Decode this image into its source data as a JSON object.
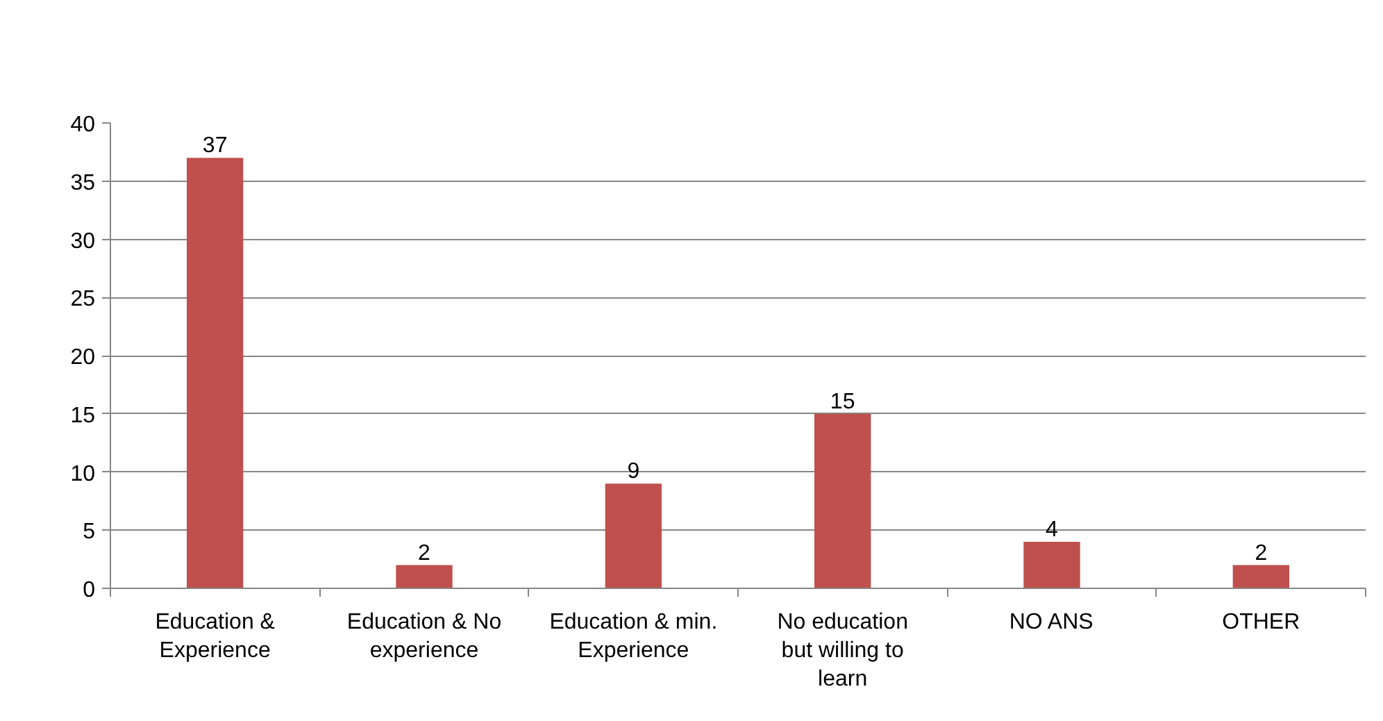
{
  "chart_data": {
    "type": "bar",
    "categories": [
      "Education &\nExperience",
      "Education & No\nexperience",
      "Education & min.\nExperience",
      "No education\nbut willing to\nlearn",
      "NO ANS",
      "OTHER"
    ],
    "values": [
      37,
      2,
      9,
      15,
      4,
      2
    ],
    "color": "#c0504d",
    "ylim": [
      0,
      40
    ],
    "yticks": [
      0,
      5,
      10,
      15,
      20,
      25,
      30,
      35,
      40
    ],
    "grid": "y",
    "data_labels": true
  }
}
